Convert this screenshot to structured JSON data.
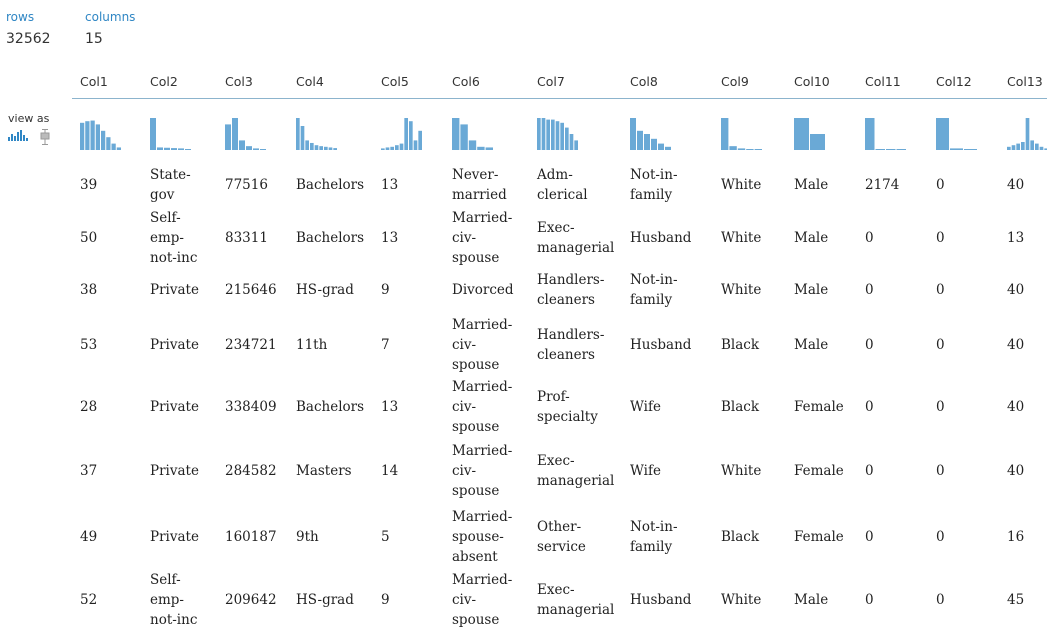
{
  "summary": {
    "rows_label": "rows",
    "rows_value": "32562",
    "columns_label": "columns",
    "columns_value": "15"
  },
  "view_as": {
    "label": "view as",
    "icons": [
      "histogram-icon",
      "boxplot-icon"
    ]
  },
  "colors": {
    "accent": "#2f86c4",
    "bar": "#6aa9d6",
    "rule": "#8cb4cd"
  },
  "columns": [
    {
      "name": "Col1",
      "hist": [
        0.85,
        0.9,
        0.92,
        0.8,
        0.6,
        0.4,
        0.2,
        0.08
      ]
    },
    {
      "name": "Col2",
      "hist": [
        1.0,
        0.08,
        0.07,
        0.06,
        0.05,
        0.03
      ]
    },
    {
      "name": "Col3",
      "hist": [
        0.8,
        1.0,
        0.3,
        0.12,
        0.05,
        0.02
      ]
    },
    {
      "name": "Col4",
      "hist": [
        1.0,
        0.75,
        0.3,
        0.22,
        0.15,
        0.12,
        0.1,
        0.08,
        0.06
      ]
    },
    {
      "name": "Col5",
      "hist": [
        0.05,
        0.08,
        0.1,
        0.15,
        0.2,
        1.0,
        0.9,
        0.3,
        0.6
      ]
    },
    {
      "name": "Col6",
      "hist": [
        1.0,
        0.8,
        0.3,
        0.1,
        0.08
      ]
    },
    {
      "name": "Col7",
      "hist": [
        1.0,
        1.0,
        0.95,
        0.95,
        0.9,
        0.85,
        0.7,
        0.5,
        0.3
      ]
    },
    {
      "name": "Col8",
      "hist": [
        1.0,
        0.6,
        0.5,
        0.35,
        0.2,
        0.1
      ]
    },
    {
      "name": "Col9",
      "hist": [
        1.0,
        0.12,
        0.05,
        0.03,
        0.02
      ]
    },
    {
      "name": "Col10",
      "hist": [
        1.0,
        0.5
      ]
    },
    {
      "name": "Col11",
      "hist": [
        1.0,
        0.03,
        0.02,
        0.01
      ]
    },
    {
      "name": "Col12",
      "hist": [
        1.0,
        0.05,
        0.03
      ]
    },
    {
      "name": "Col13",
      "hist": [
        0.1,
        0.15,
        0.2,
        0.25,
        1.0,
        0.3,
        0.2,
        0.1,
        0.05
      ]
    }
  ],
  "rows": [
    [
      "39",
      "State-\ngov",
      "77516",
      "Bachelors",
      "13",
      "Never-\nmarried",
      "Adm-\nclerical",
      "Not-in-\nfamily",
      "White",
      "Male",
      "2174",
      "0",
      "40"
    ],
    [
      "50",
      "Self-\nemp-\nnot-inc",
      "83311",
      "Bachelors",
      "13",
      "Married-\nciv-\nspouse",
      "Exec-\nmanagerial",
      "Husband",
      "White",
      "Male",
      "0",
      "0",
      "13"
    ],
    [
      "38",
      "Private",
      "215646",
      "HS-grad",
      "9",
      "Divorced",
      "Handlers-\ncleaners",
      "Not-in-\nfamily",
      "White",
      "Male",
      "0",
      "0",
      "40"
    ],
    [
      "53",
      "Private",
      "234721",
      "11th",
      "7",
      "Married-\nciv-\nspouse",
      "Handlers-\ncleaners",
      "Husband",
      "Black",
      "Male",
      "0",
      "0",
      "40"
    ],
    [
      "28",
      "Private",
      "338409",
      "Bachelors",
      "13",
      "Married-\nciv-\nspouse",
      "Prof-\nspecialty",
      "Wife",
      "Black",
      "Female",
      "0",
      "0",
      "40"
    ],
    [
      "37",
      "Private",
      "284582",
      "Masters",
      "14",
      "Married-\nciv-\nspouse",
      "Exec-\nmanagerial",
      "Wife",
      "White",
      "Female",
      "0",
      "0",
      "40"
    ],
    [
      "49",
      "Private",
      "160187",
      "9th",
      "5",
      "Married-\nspouse-\nabsent",
      "Other-\nservice",
      "Not-in-\nfamily",
      "Black",
      "Female",
      "0",
      "0",
      "16"
    ],
    [
      "52",
      "Self-\nemp-\nnot-inc",
      "209642",
      "HS-grad",
      "9",
      "Married-\nciv-\nspouse",
      "Exec-\nmanagerial",
      "Husband",
      "White",
      "Male",
      "0",
      "0",
      "45"
    ]
  ]
}
